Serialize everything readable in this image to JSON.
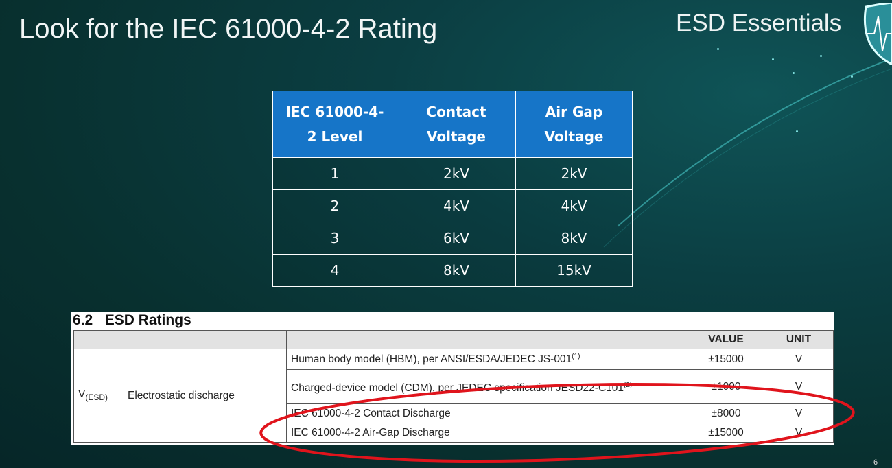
{
  "slide": {
    "title": "Look for the IEC 61000-4-2 Rating",
    "brand": "ESD Essentials",
    "brand_icon": "shield-heartbeat-icon",
    "page_number": "6"
  },
  "iec_table": {
    "headers": [
      "IEC 61000-4-2 Level",
      "Contact Voltage",
      "Air Gap Voltage"
    ],
    "rows": [
      [
        "1",
        "2kV",
        "2kV"
      ],
      [
        "2",
        "4kV",
        "4kV"
      ],
      [
        "3",
        "6kV",
        "8kV"
      ],
      [
        "4",
        "8kV",
        "15kV"
      ]
    ],
    "header_color": "#1675c8"
  },
  "esd_ratings": {
    "heading": "6.2   ESD Ratings",
    "col_value": "VALUE",
    "col_unit": "UNIT",
    "symbol": "V",
    "symbol_sub": "(ESD)",
    "parameter": "Electrostatic discharge",
    "rows": [
      {
        "condition": "Human body model (HBM), per ANSI/ESDA/JEDEC JS-001",
        "note": "(1)",
        "value": "±15000",
        "unit": "V"
      },
      {
        "condition": "Charged-device model (CDM), per JEDEC specification JESD22-C101",
        "note": "(2)",
        "value": "±1000",
        "unit": "V"
      },
      {
        "condition": "IEC 61000-4-2 Contact Discharge",
        "value": "±8000",
        "unit": "V"
      },
      {
        "condition": "IEC 61000-4-2 Air-Gap Discharge",
        "value": "±15000",
        "unit": "V"
      }
    ],
    "highlight_color": "#e0141c"
  }
}
